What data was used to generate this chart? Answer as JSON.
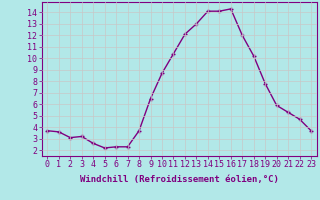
{
  "x": [
    0,
    1,
    2,
    3,
    4,
    5,
    6,
    7,
    8,
    9,
    10,
    11,
    12,
    13,
    14,
    15,
    16,
    17,
    18,
    19,
    20,
    21,
    22,
    23
  ],
  "y": [
    3.7,
    3.6,
    3.1,
    3.2,
    2.6,
    2.2,
    2.3,
    2.3,
    3.7,
    6.5,
    8.7,
    10.4,
    12.1,
    13.0,
    14.1,
    14.1,
    14.3,
    12.0,
    10.2,
    7.8,
    5.9,
    5.3,
    4.7,
    3.7
  ],
  "line_color": "#800080",
  "marker": "+",
  "marker_color": "#800080",
  "bg_color": "#b2e8e8",
  "grid_color": "#c8c8c8",
  "xlabel": "Windchill (Refroidissement éolien,°C)",
  "xlim": [
    -0.5,
    23.5
  ],
  "ylim": [
    1.5,
    14.9
  ],
  "yticks": [
    2,
    3,
    4,
    5,
    6,
    7,
    8,
    9,
    10,
    11,
    12,
    13,
    14
  ],
  "xticks": [
    0,
    1,
    2,
    3,
    4,
    5,
    6,
    7,
    8,
    9,
    10,
    11,
    12,
    13,
    14,
    15,
    16,
    17,
    18,
    19,
    20,
    21,
    22,
    23
  ],
  "tick_color": "#800080",
  "label_color": "#800080",
  "spine_color": "#800080",
  "font_size": 6,
  "label_font_size": 6.5
}
